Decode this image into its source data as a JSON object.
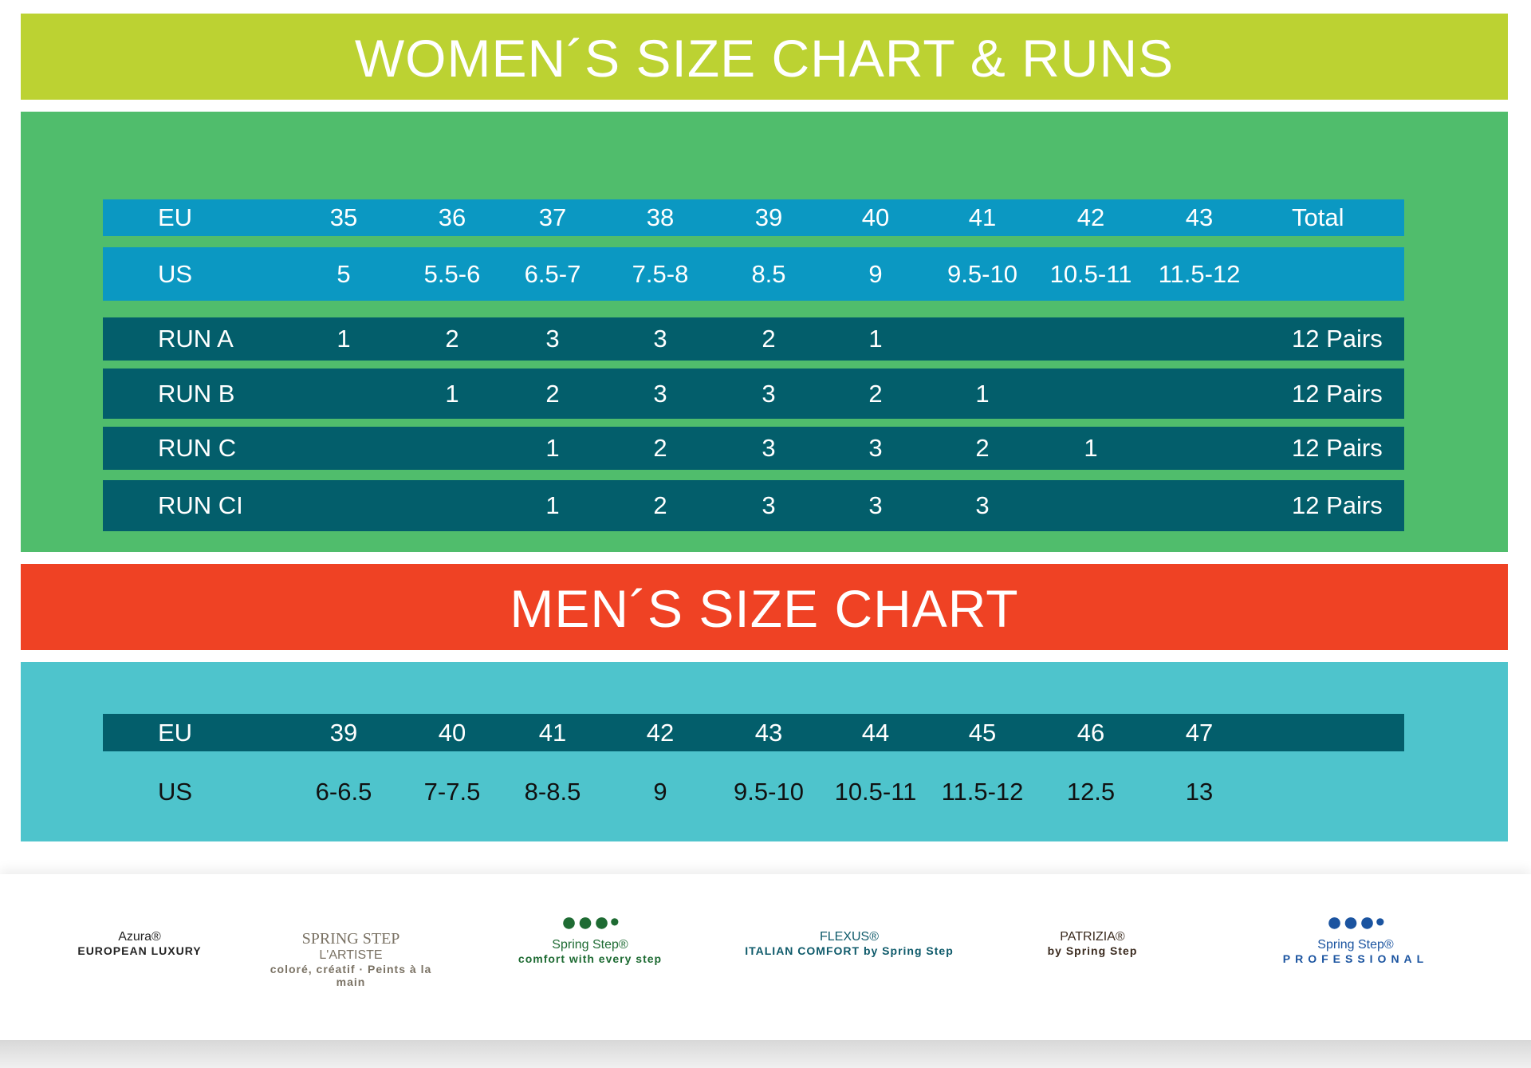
{
  "women": {
    "title": "WOMEN´S SIZE CHART & RUNS",
    "eu": {
      "label": "EU",
      "values": [
        "35",
        "36",
        "37",
        "38",
        "39",
        "40",
        "41",
        "42",
        "43"
      ],
      "total": "Total"
    },
    "us": {
      "label": "US",
      "values": [
        "5",
        "5.5-6",
        "6.5-7",
        "7.5-8",
        "8.5",
        "9",
        "9.5-10",
        "10.5-11",
        "11.5-12"
      ]
    },
    "runs": [
      {
        "label": "RUN A",
        "values": [
          "1",
          "2",
          "3",
          "3",
          "2",
          "1",
          "",
          "",
          ""
        ],
        "total": "12 Pairs"
      },
      {
        "label": "RUN B",
        "values": [
          "",
          "1",
          "2",
          "3",
          "3",
          "2",
          "1",
          "",
          ""
        ],
        "total": "12 Pairs"
      },
      {
        "label": "RUN C",
        "values": [
          "",
          "",
          "1",
          "2",
          "3",
          "3",
          "2",
          "1",
          ""
        ],
        "total": "12 Pairs"
      },
      {
        "label": "RUN CI",
        "values": [
          "",
          "",
          "1",
          "2",
          "3",
          "3",
          "3",
          "",
          ""
        ],
        "total": "12 Pairs"
      }
    ]
  },
  "men": {
    "title": "MEN´S SIZE CHART",
    "eu": {
      "label": "EU",
      "values": [
        "39",
        "40",
        "41",
        "42",
        "43",
        "44",
        "45",
        "46",
        "47"
      ]
    },
    "us": {
      "label": "US",
      "values": [
        "6-6.5",
        "7-7.5",
        "8-8.5",
        "9",
        "9.5-10",
        "10.5-11",
        "11.5-12",
        "12.5",
        "13"
      ]
    }
  },
  "logos": [
    {
      "name": "Azura®",
      "sub": "EUROPEAN LUXURY",
      "color": "#222222"
    },
    {
      "name": "L'ARTISTE",
      "top": "SPRING STEP",
      "sub": "coloré, créatif · Peints à la main",
      "color": "#7a7264"
    },
    {
      "name": "Spring Step®",
      "sub": "comfort with every step",
      "color": "#1e6b33"
    },
    {
      "name": "FLEXUS®",
      "sub": "ITALIAN COMFORT  by Spring Step",
      "color": "#0e5a6a"
    },
    {
      "name": "PATRIZIA®",
      "sub": "by Spring Step",
      "color": "#3a2a1e"
    },
    {
      "name": "Spring Step®",
      "sub": "PROFESSIONAL",
      "color": "#1b54a0"
    }
  ],
  "colors": {
    "women_banner": "#bcd232",
    "women_panel": "#50bd6c",
    "header_row": "#0b98c2",
    "run_row": "#035e6b",
    "men_banner": "#ef4224",
    "men_panel": "#4ec4cc"
  }
}
